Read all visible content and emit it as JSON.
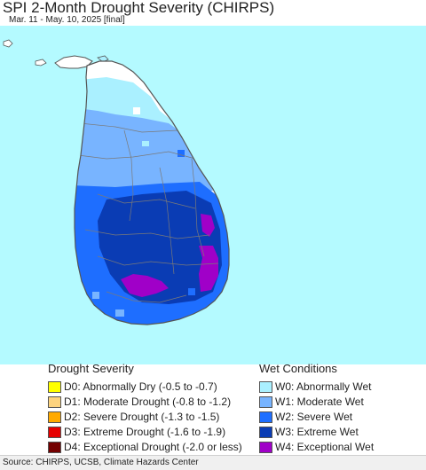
{
  "header": {
    "title": "SPI 2-Month Drought Severity (CHIRPS)",
    "subtitle": "Mar. 11 - May. 10, 2025 [final]"
  },
  "map": {
    "ocean_color": "#b4faff",
    "land_outline_color": "#555555",
    "district_border_color": "#7a7a7a",
    "regions": [
      {
        "name": "northern-dry-zone",
        "category": "none"
      },
      {
        "name": "north-central-abnormally-wet",
        "category": "W0"
      },
      {
        "name": "central-moderately-wet",
        "category": "W1"
      },
      {
        "name": "western-southern-severe-wet",
        "category": "W2"
      },
      {
        "name": "uva-sabaragamuwa-extreme-wet",
        "category": "W3"
      },
      {
        "name": "eastern-coast-exceptional-wet",
        "category": "W4"
      },
      {
        "name": "southern-exceptional-wet",
        "category": "W4"
      }
    ]
  },
  "legend": {
    "drought": {
      "title": "Drought Severity",
      "items": [
        {
          "code": "D0",
          "label": "D0: Abnormally Dry (-0.5 to -0.7)",
          "color": "#ffff00"
        },
        {
          "code": "D1",
          "label": "D1: Moderate Drought (-0.8 to -1.2)",
          "color": "#fcd37f"
        },
        {
          "code": "D2",
          "label": "D2: Severe Drought (-1.3 to -1.5)",
          "color": "#ffaa00"
        },
        {
          "code": "D3",
          "label": "D3: Extreme Drought (-1.6 to -1.9)",
          "color": "#e60000"
        },
        {
          "code": "D4",
          "label": "D4: Exceptional Drought (-2.0 or less)",
          "color": "#730000"
        }
      ]
    },
    "wet": {
      "title": "Wet Conditions",
      "items": [
        {
          "code": "W0",
          "label": "W0: Abnormally Wet",
          "color": "#aaf0ff"
        },
        {
          "code": "W1",
          "label": "W1: Moderate Wet",
          "color": "#78b4ff"
        },
        {
          "code": "W2",
          "label": "W2: Severe Wet",
          "color": "#1e6eff"
        },
        {
          "code": "W3",
          "label": "W3: Extreme Wet",
          "color": "#0a3cb4"
        },
        {
          "code": "W4",
          "label": "W4: Exceptional Wet",
          "color": "#a000c8"
        }
      ]
    }
  },
  "footer": {
    "source": "Source: CHIRPS, UCSB, Climate Hazards Center"
  }
}
